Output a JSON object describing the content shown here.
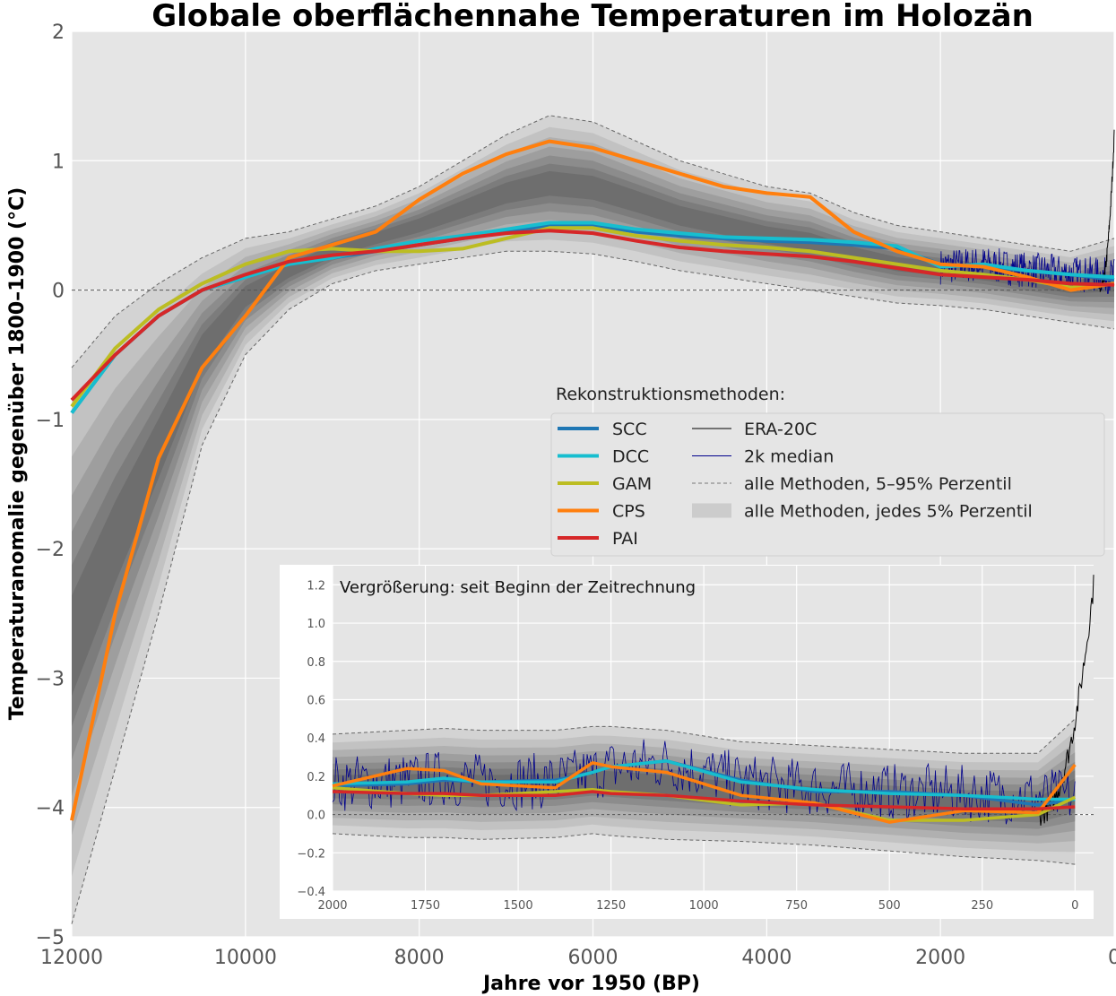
{
  "chart_data": [
    {
      "type": "line",
      "title": "Globale oberflächennahe Temperaturen im Holozän",
      "xlabel": "Jahre vor 1950 (BP)",
      "ylabel": "Temperaturanomalie gegenüber 1800–1900 (°C)",
      "xlim": [
        12000,
        0
      ],
      "ylim": [
        -5,
        2
      ],
      "xticks": [
        12000,
        10000,
        8000,
        6000,
        4000,
        2000,
        0
      ],
      "xtick_labels": [
        "12000",
        "10000",
        "8000",
        "6000",
        "4000",
        "2000",
        "0"
      ],
      "yticks": [
        -5,
        -4,
        -3,
        -2,
        -1,
        0,
        1,
        2
      ],
      "ytick_labels": [
        "−5",
        "−4",
        "−3",
        "−2",
        "−1",
        "0",
        "1",
        "2"
      ],
      "zero_line": true,
      "grid": true,
      "legend_title": "Rekonstruktionsmethoden:",
      "legend": [
        {
          "label": "SCC",
          "color": "#1f77b4",
          "kind": "line"
        },
        {
          "label": "DCC",
          "color": "#17becf",
          "kind": "line"
        },
        {
          "label": "GAM",
          "color": "#bcbd22",
          "kind": "line"
        },
        {
          "label": "CPS",
          "color": "#ff7f0e",
          "kind": "line"
        },
        {
          "label": "PAI",
          "color": "#d62728",
          "kind": "line"
        },
        {
          "label": "ERA-20C",
          "color": "#000000",
          "kind": "thin"
        },
        {
          "label": "2k median",
          "color": "#00008b",
          "kind": "thin"
        },
        {
          "label": "alle Methoden, 5–95% Perzentil",
          "color": "#777777",
          "kind": "dashed"
        },
        {
          "label": "alle Methoden, jedes 5% Perzentil",
          "color": "#cccccc",
          "kind": "patch"
        }
      ],
      "x": [
        12000,
        11500,
        11000,
        10500,
        10000,
        9500,
        9000,
        8500,
        8000,
        7500,
        7000,
        6500,
        6000,
        5500,
        5000,
        4500,
        4000,
        3500,
        3000,
        2500,
        2000,
        1500,
        1000,
        500,
        0
      ],
      "series": [
        {
          "name": "SCC",
          "color": "#1f77b4",
          "values": [
            -0.95,
            -0.5,
            -0.2,
            0.0,
            0.1,
            0.2,
            0.25,
            0.3,
            0.35,
            0.4,
            0.45,
            0.5,
            0.5,
            0.45,
            0.42,
            0.4,
            0.38,
            0.37,
            0.35,
            0.32,
            0.2,
            0.18,
            0.15,
            0.12,
            0.08
          ]
        },
        {
          "name": "DCC",
          "color": "#17becf",
          "values": [
            -0.95,
            -0.5,
            -0.2,
            0.0,
            0.1,
            0.2,
            0.25,
            0.32,
            0.38,
            0.42,
            0.47,
            0.52,
            0.52,
            0.47,
            0.44,
            0.41,
            0.4,
            0.39,
            0.37,
            0.34,
            0.18,
            0.2,
            0.15,
            0.12,
            0.1
          ]
        },
        {
          "name": "GAM",
          "color": "#bcbd22",
          "values": [
            -0.9,
            -0.45,
            -0.15,
            0.05,
            0.2,
            0.3,
            0.32,
            0.3,
            0.3,
            0.32,
            0.4,
            0.48,
            0.48,
            0.42,
            0.38,
            0.35,
            0.33,
            0.3,
            0.25,
            0.2,
            0.15,
            0.12,
            0.08,
            0.02,
            0.05
          ]
        },
        {
          "name": "CPS",
          "color": "#ff7f0e",
          "values": [
            -4.1,
            -2.5,
            -1.3,
            -0.6,
            -0.2,
            0.25,
            0.35,
            0.45,
            0.7,
            0.9,
            1.05,
            1.15,
            1.1,
            1.0,
            0.9,
            0.8,
            0.75,
            0.72,
            0.45,
            0.3,
            0.2,
            0.18,
            0.1,
            0.0,
            0.05
          ]
        },
        {
          "name": "PAI",
          "color": "#d62728",
          "values": [
            -0.85,
            -0.5,
            -0.2,
            0.0,
            0.12,
            0.22,
            0.27,
            0.3,
            0.35,
            0.4,
            0.44,
            0.46,
            0.44,
            0.38,
            0.33,
            0.3,
            0.28,
            0.26,
            0.22,
            0.17,
            0.12,
            0.1,
            0.08,
            0.05,
            0.04
          ]
        }
      ],
      "percentile_5": [
        -4.9,
        -3.7,
        -2.5,
        -1.2,
        -0.5,
        -0.15,
        0.05,
        0.15,
        0.2,
        0.25,
        0.3,
        0.3,
        0.28,
        0.22,
        0.15,
        0.1,
        0.05,
        0.0,
        -0.05,
        -0.1,
        -0.12,
        -0.15,
        -0.2,
        -0.25,
        -0.3
      ],
      "percentile_95": [
        -0.6,
        -0.2,
        0.05,
        0.25,
        0.4,
        0.45,
        0.55,
        0.65,
        0.8,
        1.0,
        1.2,
        1.35,
        1.3,
        1.15,
        1.0,
        0.9,
        0.8,
        0.75,
        0.6,
        0.5,
        0.45,
        0.4,
        0.35,
        0.3,
        0.4
      ]
    },
    {
      "type": "line",
      "title": "Vergrößerung: seit Beginn der Zeitrechnung",
      "xlim": [
        2000,
        -50
      ],
      "ylim": [
        -0.4,
        1.3
      ],
      "xticks": [
        2000,
        1750,
        1500,
        1250,
        1000,
        750,
        500,
        250,
        0
      ],
      "xtick_labels": [
        "2000",
        "1750",
        "1500",
        "1250",
        "1000",
        "750",
        "500",
        "250",
        "0"
      ],
      "yticks": [
        -0.4,
        -0.2,
        0.0,
        0.2,
        0.4,
        0.6,
        0.8,
        1.0,
        1.2
      ],
      "ytick_labels": [
        "−0.4",
        "−0.2",
        "0.0",
        "0.2",
        "0.4",
        "0.6",
        "0.8",
        "1.0",
        "1.2"
      ],
      "zero_line": true,
      "x": [
        2000,
        1800,
        1700,
        1600,
        1400,
        1300,
        1250,
        1100,
        900,
        700,
        500,
        300,
        100,
        0
      ],
      "series": [
        {
          "name": "SCC",
          "color": "#1f77b4",
          "values": [
            0.15,
            0.16,
            0.18,
            0.17,
            0.18,
            0.22,
            0.25,
            0.28,
            0.18,
            0.12,
            0.12,
            0.1,
            0.05,
            0.08
          ]
        },
        {
          "name": "DCC",
          "color": "#17becf",
          "values": [
            0.16,
            0.17,
            0.19,
            0.17,
            0.17,
            0.22,
            0.25,
            0.28,
            0.17,
            0.13,
            0.11,
            0.1,
            0.08,
            0.08
          ]
        },
        {
          "name": "GAM",
          "color": "#bcbd22",
          "values": [
            0.14,
            0.11,
            0.1,
            0.1,
            0.12,
            0.13,
            0.12,
            0.1,
            0.05,
            0.06,
            -0.03,
            -0.03,
            0.0,
            0.09
          ]
        },
        {
          "name": "CPS",
          "color": "#ff7f0e",
          "values": [
            0.15,
            0.24,
            0.23,
            0.16,
            0.14,
            0.27,
            0.25,
            0.22,
            0.1,
            0.06,
            -0.04,
            0.02,
            0.01,
            0.26
          ]
        },
        {
          "name": "PAI",
          "color": "#d62728",
          "values": [
            0.12,
            0.11,
            0.11,
            0.1,
            0.1,
            0.12,
            0.11,
            0.1,
            0.07,
            0.05,
            0.04,
            0.03,
            0.03,
            0.04
          ]
        }
      ],
      "percentile_5": [
        -0.1,
        -0.12,
        -0.12,
        -0.13,
        -0.12,
        -0.1,
        -0.11,
        -0.13,
        -0.14,
        -0.16,
        -0.19,
        -0.22,
        -0.24,
        -0.26
      ],
      "percentile_95": [
        0.42,
        0.44,
        0.45,
        0.44,
        0.44,
        0.46,
        0.46,
        0.44,
        0.38,
        0.36,
        0.34,
        0.32,
        0.32,
        0.5
      ]
    }
  ]
}
